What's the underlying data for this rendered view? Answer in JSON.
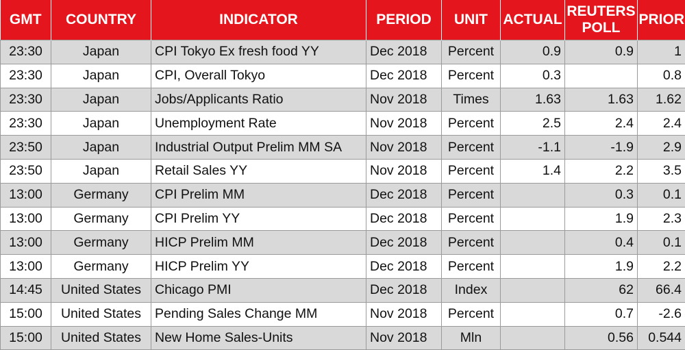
{
  "headers": {
    "gmt": "GMT",
    "country": "COUNTRY",
    "indicator": "INDICATOR",
    "period": "PERIOD",
    "unit": "UNIT",
    "actual": "ACTUAL",
    "poll_line1": "REUTERS",
    "poll_line2": "POLL",
    "prior": "PRIOR"
  },
  "rows": [
    {
      "gmt": "23:30",
      "country": "Japan",
      "indicator": "CPI Tokyo Ex fresh food YY",
      "period": "Dec 2018",
      "unit": "Percent",
      "actual": "0.9",
      "poll": "0.9",
      "prior": "1"
    },
    {
      "gmt": "23:30",
      "country": "Japan",
      "indicator": "CPI, Overall Tokyo",
      "period": "Dec 2018",
      "unit": "Percent",
      "actual": "0.3",
      "poll": "",
      "prior": "0.8"
    },
    {
      "gmt": "23:30",
      "country": "Japan",
      "indicator": "Jobs/Applicants Ratio",
      "period": "Nov 2018",
      "unit": "Times",
      "actual": "1.63",
      "poll": "1.63",
      "prior": "1.62"
    },
    {
      "gmt": "23:30",
      "country": "Japan",
      "indicator": "Unemployment Rate",
      "period": "Nov 2018",
      "unit": "Percent",
      "actual": "2.5",
      "poll": "2.4",
      "prior": "2.4"
    },
    {
      "gmt": "23:50",
      "country": "Japan",
      "indicator": "Industrial Output Prelim MM SA",
      "period": "Nov 2018",
      "unit": "Percent",
      "actual": "-1.1",
      "poll": "-1.9",
      "prior": "2.9"
    },
    {
      "gmt": "23:50",
      "country": "Japan",
      "indicator": "Retail Sales YY",
      "period": "Nov 2018",
      "unit": "Percent",
      "actual": "1.4",
      "poll": "2.2",
      "prior": "3.5"
    },
    {
      "gmt": "13:00",
      "country": "Germany",
      "indicator": "CPI Prelim MM",
      "period": "Dec 2018",
      "unit": "Percent",
      "actual": "",
      "poll": "0.3",
      "prior": "0.1"
    },
    {
      "gmt": "13:00",
      "country": "Germany",
      "indicator": "CPI Prelim YY",
      "period": "Dec 2018",
      "unit": "Percent",
      "actual": "",
      "poll": "1.9",
      "prior": "2.3"
    },
    {
      "gmt": "13:00",
      "country": "Germany",
      "indicator": "HICP Prelim MM",
      "period": "Dec 2018",
      "unit": "Percent",
      "actual": "",
      "poll": "0.4",
      "prior": "0.1"
    },
    {
      "gmt": "13:00",
      "country": "Germany",
      "indicator": "HICP Prelim YY",
      "period": "Dec 2018",
      "unit": "Percent",
      "actual": "",
      "poll": "1.9",
      "prior": "2.2"
    },
    {
      "gmt": "14:45",
      "country": "United States",
      "indicator": "Chicago PMI",
      "period": "Dec 2018",
      "unit": "Index",
      "actual": "",
      "poll": "62",
      "prior": "66.4"
    },
    {
      "gmt": "15:00",
      "country": "United States",
      "indicator": "Pending Sales Change MM",
      "period": "Nov 2018",
      "unit": "Percent",
      "actual": "",
      "poll": "0.7",
      "prior": "-2.6"
    },
    {
      "gmt": "15:00",
      "country": "United States",
      "indicator": "New Home Sales-Units",
      "period": "Nov 2018",
      "unit": "Mln",
      "actual": "",
      "poll": "0.56",
      "prior": "0.544"
    }
  ],
  "colors": {
    "header_bg": "#e4151d",
    "header_text": "#ffffff",
    "row_shade": "#d9d9d9",
    "row_plain": "#ffffff"
  }
}
